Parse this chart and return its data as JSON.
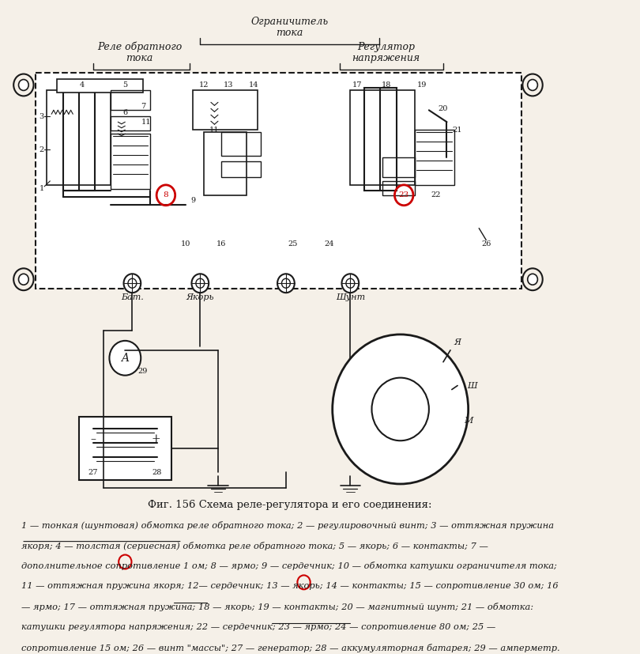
{
  "title": "Фиг. 156 Схема реле-регулятора и его соединения:",
  "caption_line1": "1 — тонкая (шунтовая) обмотка реле обратного тока; 2 — регулировочный винт; 3 — оттяжная пружина",
  "caption_line2": "якоря; 4 — толстая (сериесная) обмотка реле обратного тока; 5 — якорь; 6 — контакты; 7 —",
  "caption_line3": "дополнительное сопротивление 1 ом; 8 — ярмо; 9 — сердечник; 10 — обмотка катушки ограничителя тока;",
  "caption_line4": "11 — оттяжная пружина якоря; 12— сердечник; 13 — якорь; 14 — контакты; 15 — сопротивление 30 ом; 16",
  "caption_line5": "— ярмо; 17 — оттяжная пружина; 18 — якорь; 19 — контакты; 20 — магнитный шунт; 21 — обмотка:",
  "caption_line6": "катушки регулятора напряжения; 22 — сердечник; 23 — ярмо; 24 — сопротивление 80 ом; 25 —",
  "caption_line7": "сопротивление 15 ом; 26 — винт \"массы\"; 27 — генератор; 28 — аккумуляторная батарея; 29 — амперметр.",
  "label_top": "Ограничитель",
  "label_top2": "тока",
  "label_rele": "Реле обратного",
  "label_rele2": "тока",
  "label_reg": "Регулятор",
  "label_reg2": "напряжения",
  "label_bat": "Бат.",
  "label_yakor": "Якорь",
  "label_shunt": "Шунт",
  "bg_color": "#f5f0e8",
  "line_color": "#1a1a1a",
  "text_color": "#1a1a1a",
  "red_circle_color": "#cc0000"
}
